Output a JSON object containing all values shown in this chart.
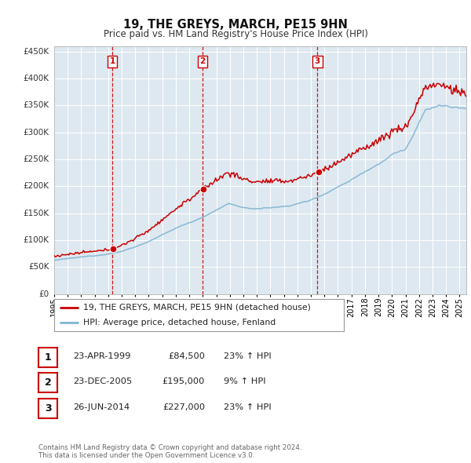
{
  "title": "19, THE GREYS, MARCH, PE15 9HN",
  "subtitle": "Price paid vs. HM Land Registry's House Price Index (HPI)",
  "bg_color": "#ffffff",
  "plot_bg_color": "#dde8f0",
  "grid_color": "#ffffff",
  "sale_color": "#cc0000",
  "hpi_color": "#7fb3d3",
  "ylim": [
    0,
    460000
  ],
  "xlim_start": 1995.0,
  "xlim_end": 2025.5,
  "yticks": [
    0,
    50000,
    100000,
    150000,
    200000,
    250000,
    300000,
    350000,
    400000,
    450000
  ],
  "ytick_labels": [
    "£0",
    "£50K",
    "£100K",
    "£150K",
    "£200K",
    "£250K",
    "£300K",
    "£350K",
    "£400K",
    "£450K"
  ],
  "xtick_years": [
    1995,
    1996,
    1997,
    1998,
    1999,
    2000,
    2001,
    2002,
    2003,
    2004,
    2005,
    2006,
    2007,
    2008,
    2009,
    2010,
    2011,
    2012,
    2013,
    2014,
    2015,
    2016,
    2017,
    2018,
    2019,
    2020,
    2021,
    2022,
    2023,
    2024,
    2025
  ],
  "sale_points": [
    {
      "year": 1999.31,
      "price": 84500,
      "label": "1"
    },
    {
      "year": 2005.98,
      "price": 195000,
      "label": "2"
    },
    {
      "year": 2014.48,
      "price": 227000,
      "label": "3"
    }
  ],
  "vline_years": [
    1999.31,
    2005.98,
    2014.48
  ],
  "table_rows": [
    {
      "num": "1",
      "date": "23-APR-1999",
      "price": "£84,500",
      "change": "23% ↑ HPI"
    },
    {
      "num": "2",
      "date": "23-DEC-2005",
      "price": "£195,000",
      "change": "9% ↑ HPI"
    },
    {
      "num": "3",
      "date": "26-JUN-2014",
      "price": "£227,000",
      "change": "23% ↑ HPI"
    }
  ],
  "legend_line1": "19, THE GREYS, MARCH, PE15 9HN (detached house)",
  "legend_line2": "HPI: Average price, detached house, Fenland",
  "footnote": "Contains HM Land Registry data © Crown copyright and database right 2024.\nThis data is licensed under the Open Government Licence v3.0."
}
